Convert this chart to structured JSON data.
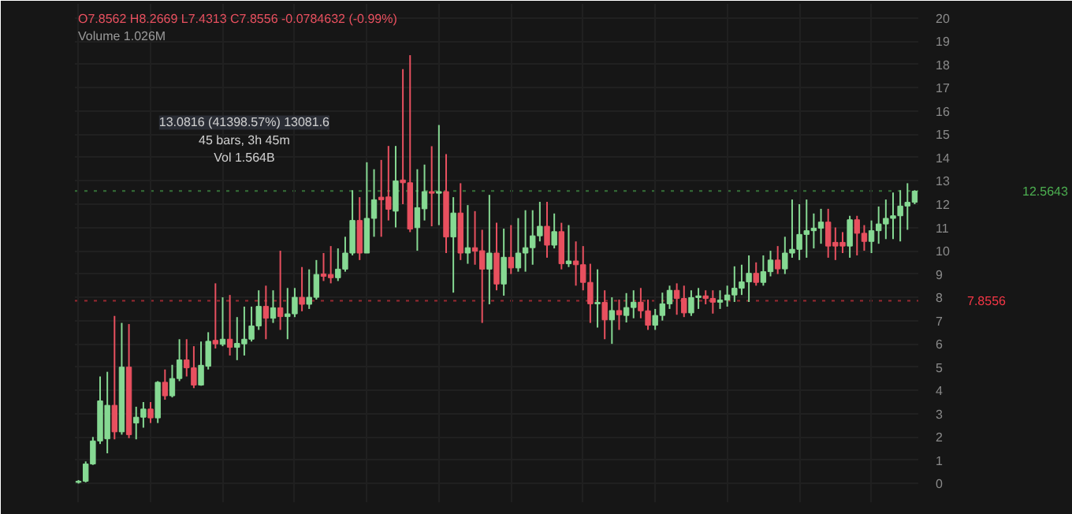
{
  "chart_data": {
    "type": "candlestick",
    "subtitle": "O7.8562 H8.2669 L7.4313 C7.8556 -0.0784632 (-0.99%)",
    "annotations": [
      "Volume 1.026M",
      "13.0816 (41398.57%) 13081.6",
      "45 bars, 3h 45m",
      "Vol 1.564B"
    ],
    "categories": [
      null,
      null,
      null,
      null,
      null,
      null,
      null,
      null,
      null,
      null,
      null,
      null,
      null,
      null,
      null,
      null,
      null,
      null,
      null,
      null,
      null,
      null,
      null,
      null,
      null,
      null,
      null,
      null,
      null,
      null,
      null,
      null,
      null,
      null,
      null,
      null,
      null,
      null,
      null,
      null,
      null,
      null,
      null,
      null,
      null,
      null,
      null,
      null,
      null,
      null,
      null,
      null,
      null,
      null,
      null,
      null,
      null,
      null,
      null,
      null,
      null,
      null,
      null,
      null,
      null,
      null,
      null,
      null,
      null,
      null,
      null,
      null,
      null,
      null,
      null,
      null,
      null,
      null,
      null,
      null,
      null,
      null,
      null,
      null,
      null,
      null,
      null,
      null,
      null,
      null,
      null,
      null,
      null,
      null,
      null,
      null,
      null,
      null,
      null,
      null,
      null,
      null,
      null,
      null,
      null,
      null,
      null,
      null,
      null,
      null,
      null,
      null,
      null,
      null,
      null,
      null,
      null
    ],
    "ohlc": [
      [
        0.05,
        0.15,
        0.0,
        0.1
      ],
      [
        0.1,
        0.95,
        0.05,
        0.84
      ],
      [
        0.84,
        2.0,
        0.8,
        1.83
      ],
      [
        1.83,
        4.6,
        1.7,
        3.55
      ],
      [
        1.92,
        4.8,
        1.3,
        3.36
      ],
      [
        3.36,
        7.2,
        1.9,
        2.22
      ],
      [
        2.22,
        6.9,
        2.1,
        5.0
      ],
      [
        5.0,
        6.85,
        1.95,
        2.1
      ],
      [
        2.6,
        3.3,
        1.9,
        2.85
      ],
      [
        2.85,
        3.5,
        2.4,
        3.2
      ],
      [
        3.2,
        3.5,
        2.6,
        2.82
      ],
      [
        2.82,
        4.4,
        2.6,
        4.35
      ],
      [
        4.35,
        4.9,
        3.6,
        3.77
      ],
      [
        3.77,
        5.1,
        3.7,
        4.51
      ],
      [
        4.51,
        6.2,
        4.4,
        5.31
      ],
      [
        5.31,
        6.2,
        4.6,
        4.97
      ],
      [
        4.97,
        5.9,
        4.1,
        4.23
      ],
      [
        4.23,
        6.1,
        4.2,
        5.08
      ],
      [
        5.04,
        6.5,
        4.9,
        6.11
      ],
      [
        6.15,
        8.6,
        5.8,
        6.0
      ],
      [
        5.98,
        8.0,
        5.9,
        6.2
      ],
      [
        6.2,
        8.1,
        5.5,
        5.85
      ],
      [
        5.85,
        7.15,
        5.3,
        6.02
      ],
      [
        6.0,
        7.6,
        5.5,
        6.2
      ],
      [
        6.2,
        7.6,
        6.1,
        6.77
      ],
      [
        6.77,
        8.3,
        6.6,
        7.61
      ],
      [
        7.61,
        8.5,
        6.2,
        7.1
      ],
      [
        7.1,
        8.3,
        6.9,
        7.55
      ],
      [
        7.55,
        10.0,
        6.6,
        7.17
      ],
      [
        7.17,
        8.4,
        6.2,
        7.29
      ],
      [
        7.29,
        8.4,
        7.15,
        8.0
      ],
      [
        8.0,
        9.3,
        7.4,
        7.7
      ],
      [
        7.7,
        9.2,
        7.5,
        8.0
      ],
      [
        8.0,
        9.6,
        7.9,
        8.98
      ],
      [
        9.0,
        9.9,
        8.7,
        8.9
      ],
      [
        8.98,
        10.2,
        8.6,
        8.84
      ],
      [
        8.84,
        10.1,
        8.7,
        9.21
      ],
      [
        9.21,
        10.6,
        9.1,
        9.9
      ],
      [
        9.9,
        12.6,
        9.8,
        11.3
      ],
      [
        11.3,
        12.3,
        9.6,
        9.9
      ],
      [
        9.9,
        13.8,
        9.9,
        11.39
      ],
      [
        11.39,
        13.5,
        10.6,
        12.19
      ],
      [
        12.3,
        13.9,
        10.6,
        12.19
      ],
      [
        12.31,
        14.5,
        11.3,
        11.78
      ],
      [
        11.7,
        14.5,
        11.0,
        13.0
      ],
      [
        13.04,
        17.8,
        12.0,
        12.92
      ],
      [
        12.92,
        18.4,
        10.8,
        10.93
      ],
      [
        10.99,
        13.5,
        10.0,
        11.85
      ],
      [
        11.8,
        13.7,
        11.3,
        12.54
      ],
      [
        12.54,
        14.49,
        11.05,
        12.47
      ],
      [
        12.47,
        15.4,
        11.1,
        12.54
      ],
      [
        12.54,
        14.15,
        9.9,
        10.59
      ],
      [
        10.59,
        12.3,
        8.2,
        11.62
      ],
      [
        11.62,
        12.9,
        9.6,
        9.9
      ],
      [
        9.9,
        11.96,
        9.44,
        10.13
      ],
      [
        10.13,
        11.7,
        9.4,
        9.98
      ],
      [
        10.0,
        10.9,
        6.9,
        9.21
      ],
      [
        9.21,
        12.4,
        7.7,
        9.9
      ],
      [
        9.9,
        11.2,
        8.3,
        8.57
      ],
      [
        8.57,
        10.95,
        8.07,
        9.72
      ],
      [
        9.72,
        11.1,
        9.0,
        9.26
      ],
      [
        9.26,
        11.4,
        9.1,
        9.9
      ],
      [
        9.9,
        11.74,
        9.1,
        10.13
      ],
      [
        10.13,
        11.74,
        9.4,
        10.64
      ],
      [
        10.64,
        12.1,
        10.4,
        11.05
      ],
      [
        11.05,
        12.1,
        9.7,
        10.24
      ],
      [
        10.24,
        11.6,
        10.1,
        10.82
      ],
      [
        10.82,
        11.2,
        9.2,
        9.44
      ],
      [
        9.44,
        11.1,
        9.3,
        9.56
      ],
      [
        9.56,
        10.4,
        8.5,
        9.4
      ],
      [
        9.4,
        10.2,
        8.3,
        8.64
      ],
      [
        8.64,
        9.44,
        6.9,
        7.72
      ],
      [
        7.72,
        9.2,
        6.7,
        7.78
      ],
      [
        7.78,
        8.3,
        6.2,
        7.03
      ],
      [
        7.03,
        8.0,
        6.0,
        7.43
      ],
      [
        7.43,
        7.9,
        6.6,
        7.25
      ],
      [
        7.22,
        8.18,
        6.92,
        7.56
      ],
      [
        7.56,
        8.3,
        7.1,
        7.79
      ],
      [
        7.79,
        8.4,
        7.1,
        7.42
      ],
      [
        7.42,
        7.9,
        6.6,
        6.8
      ],
      [
        6.8,
        7.5,
        6.6,
        7.22
      ],
      [
        7.22,
        8.2,
        7.0,
        7.72
      ],
      [
        7.72,
        8.5,
        7.5,
        8.3
      ],
      [
        8.3,
        8.6,
        7.25,
        7.95
      ],
      [
        7.95,
        8.5,
        7.15,
        7.33
      ],
      [
        7.33,
        8.3,
        7.2,
        7.99
      ],
      [
        7.99,
        8.4,
        7.5,
        8.06
      ],
      [
        8.06,
        8.3,
        7.7,
        7.95
      ],
      [
        7.95,
        8.3,
        7.3,
        7.79
      ],
      [
        7.79,
        8.3,
        7.5,
        7.88
      ],
      [
        7.88,
        8.5,
        7.6,
        8.1
      ],
      [
        8.1,
        9.33,
        7.8,
        8.39
      ],
      [
        8.39,
        9.4,
        8.1,
        8.66
      ],
      [
        8.66,
        9.8,
        7.8,
        9.03
      ],
      [
        9.03,
        9.5,
        8.5,
        8.64
      ],
      [
        8.64,
        9.8,
        8.5,
        9.1
      ],
      [
        9.1,
        10.0,
        8.9,
        9.6
      ],
      [
        9.6,
        10.2,
        9.0,
        9.22
      ],
      [
        9.22,
        10.6,
        9.0,
        9.9
      ],
      [
        9.9,
        12.2,
        9.7,
        10.06
      ],
      [
        10.06,
        12.0,
        9.6,
        10.7
      ],
      [
        10.7,
        12.2,
        9.7,
        10.86
      ],
      [
        10.86,
        11.6,
        10.1,
        10.97
      ],
      [
        10.97,
        11.8,
        10.3,
        11.23
      ],
      [
        11.23,
        11.8,
        9.7,
        10.2
      ],
      [
        10.36,
        11.0,
        9.6,
        10.2
      ],
      [
        10.36,
        10.8,
        9.9,
        10.2
      ],
      [
        10.2,
        11.5,
        9.7,
        11.33
      ],
      [
        11.33,
        11.5,
        9.8,
        10.75
      ],
      [
        10.75,
        11.1,
        10.0,
        10.4
      ],
      [
        10.4,
        11.3,
        9.9,
        10.86
      ],
      [
        10.86,
        11.9,
        10.3,
        11.15
      ],
      [
        11.15,
        12.2,
        10.5,
        11.39
      ],
      [
        11.39,
        12.5,
        10.5,
        11.5
      ],
      [
        11.5,
        12.6,
        10.4,
        11.92
      ],
      [
        11.92,
        12.9,
        10.9,
        12.08
      ],
      [
        12.08,
        12.6,
        12.0,
        12.56
      ]
    ],
    "ylim": [
      -0.8,
      20.6
    ],
    "yticks": [
      0,
      1,
      2,
      3,
      4,
      5,
      6,
      7,
      8,
      9,
      10,
      11,
      12,
      13,
      14,
      15,
      16,
      17,
      18,
      19,
      20
    ],
    "tick_labels": "y",
    "grid": true,
    "ref_lines": [
      {
        "axis": "y",
        "value": 7.8556,
        "label": "7.8556",
        "color": "#f23645",
        "line_style": "dotted"
      },
      {
        "axis": "y",
        "value": 12.5643,
        "label": "12.5643",
        "color": "#4caf50",
        "line_style": "dotted"
      }
    ]
  }
}
